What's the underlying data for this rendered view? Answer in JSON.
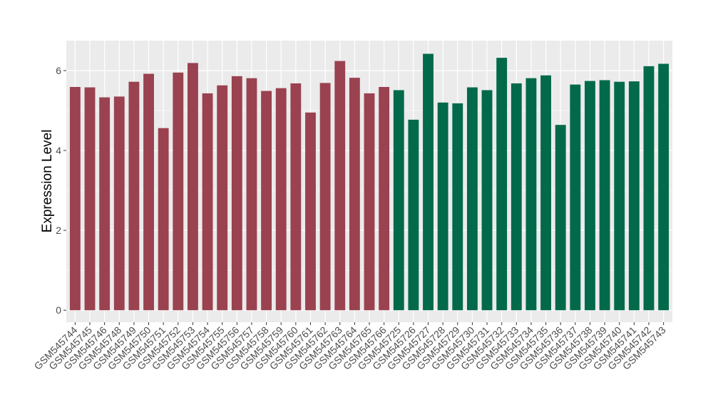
{
  "chart_data": {
    "type": "bar",
    "title": "",
    "xlabel": "",
    "ylabel": "Expression Level",
    "ylim": [
      -0.3,
      6.75
    ],
    "yticks": [
      0,
      2,
      4,
      6
    ],
    "grid": true,
    "legend": "none",
    "categories": [
      "GSM545744",
      "GSM545745",
      "GSM545746",
      "GSM545748",
      "GSM545749",
      "GSM545750",
      "GSM545751",
      "GSM545752",
      "GSM545753",
      "GSM545754",
      "GSM545755",
      "GSM545756",
      "GSM545757",
      "GSM545758",
      "GSM545759",
      "GSM545760",
      "GSM545761",
      "GSM545762",
      "GSM545763",
      "GSM545764",
      "GSM545765",
      "GSM545766",
      "GSM545725",
      "GSM545726",
      "GSM545727",
      "GSM545728",
      "GSM545729",
      "GSM545730",
      "GSM545731",
      "GSM545732",
      "GSM545733",
      "GSM545734",
      "GSM545735",
      "GSM545736",
      "GSM545737",
      "GSM545738",
      "GSM545739",
      "GSM545740",
      "GSM545741",
      "GSM545742",
      "GSM545743"
    ],
    "values": [
      5.59,
      5.58,
      5.33,
      5.35,
      5.72,
      5.92,
      4.56,
      5.95,
      6.19,
      5.43,
      5.63,
      5.86,
      5.81,
      5.49,
      5.56,
      5.68,
      4.95,
      5.69,
      6.24,
      5.82,
      5.43,
      5.59,
      5.51,
      4.77,
      6.42,
      5.2,
      5.18,
      5.58,
      5.51,
      6.32,
      5.68,
      5.81,
      5.88,
      4.64,
      5.65,
      5.74,
      5.76,
      5.72,
      5.73,
      6.11,
      6.17
    ],
    "groups": [
      {
        "count": 22,
        "color": "#9b4251"
      },
      {
        "count": 19,
        "color": "#02694a"
      }
    ],
    "panel_color": "#ebebeb",
    "grid_color": "#ffffff"
  }
}
